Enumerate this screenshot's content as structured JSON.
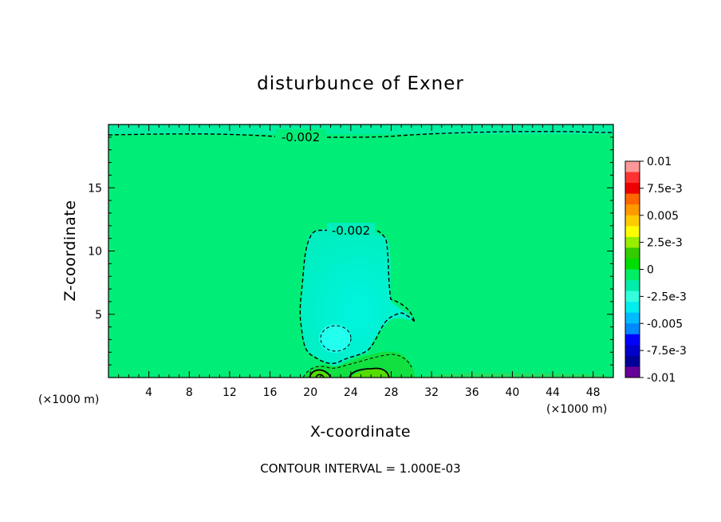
{
  "chart_data": {
    "type": "heatmap",
    "title": "disturbunce of Exner",
    "xlabel": "X-coordinate",
    "ylabel": "Z-coordinate",
    "x_unit": "(×1000 m)",
    "x_unit_right": "(×1000 m)",
    "xlim": [
      0,
      50
    ],
    "ylim": [
      0,
      20
    ],
    "x_ticks": [
      4,
      8,
      12,
      16,
      20,
      24,
      28,
      32,
      36,
      40,
      44,
      48
    ],
    "y_ticks": [
      5,
      10,
      15
    ],
    "colorbar": {
      "range": [
        -0.01,
        0.01
      ],
      "labels": [
        "0.01",
        "7.5e-3",
        "0.005",
        "2.5e-3",
        "0",
        "-2.5e-3",
        "-0.005",
        "-7.5e-3",
        "-0.01"
      ],
      "colors": [
        "#ff9999",
        "#ff3333",
        "#ee0000",
        "#ff6600",
        "#ff9900",
        "#ffcc00",
        "#ffff00",
        "#99ee00",
        "#33cc00",
        "#00dd00",
        "#00ee66",
        "#00eeaa",
        "#33ffdd",
        "#00eeee",
        "#00bbff",
        "#0088ff",
        "#0000ff",
        "#0000cc",
        "#000099",
        "#660099"
      ]
    },
    "background_color": "#00ee77",
    "contour_labels": [
      "-0.002",
      "-0.002"
    ],
    "footnote": "CONTOUR INTERVAL = 1.000E-03"
  }
}
